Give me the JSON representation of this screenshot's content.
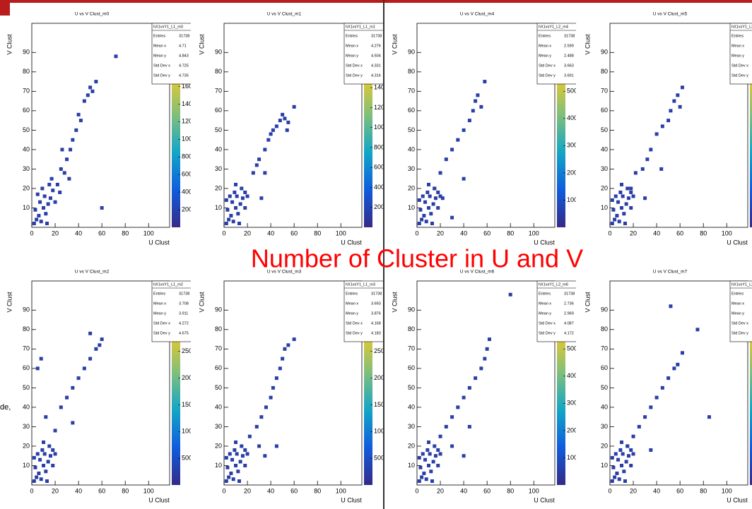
{
  "slide_title": "Number of Cluster in U and V",
  "side_text": "de,",
  "chart_data": [
    {
      "type": "scatter",
      "title": "U vs V Clust_m0",
      "xlabel": "U Clust",
      "ylabel": "V Clust",
      "color": "#2a3fa6",
      "x": [
        2,
        4,
        6,
        8,
        3,
        10,
        12,
        7,
        14,
        11,
        16,
        18,
        9,
        20,
        15,
        22,
        5,
        13,
        24,
        17,
        25,
        28,
        30,
        33,
        35,
        38,
        40,
        45,
        48,
        50,
        52,
        55,
        42,
        26,
        60,
        72,
        32
      ],
      "y": [
        2,
        4,
        6,
        3,
        9,
        10,
        7,
        13,
        12,
        16,
        15,
        19,
        20,
        13,
        22,
        22,
        17,
        2,
        18,
        25,
        30,
        28,
        35,
        40,
        45,
        50,
        58,
        65,
        68,
        72,
        70,
        75,
        55,
        40,
        10,
        88,
        25
      ],
      "xlim": [
        0,
        118
      ],
      "ylim": [
        0,
        105
      ],
      "xticks": [
        0,
        20,
        40,
        60,
        80,
        100
      ],
      "yticks": [
        10,
        20,
        30,
        40,
        50,
        60,
        70,
        80,
        90
      ],
      "colorbar": {
        "lim": [
          0,
          1700
        ],
        "ticks": [
          200,
          400,
          600,
          800,
          1000,
          1200,
          1400,
          1600
        ]
      },
      "stats": {
        "name": "hX1vsY1_L1_m0",
        "labels": [
          "Entries",
          "Mean x",
          "Mean y",
          "Std Dev x",
          "Std Dev y"
        ],
        "values": [
          "31738",
          "4.71",
          "4.843",
          "4.725",
          "4.735"
        ]
      }
    },
    {
      "type": "scatter",
      "title": "U vs V Clust_m1",
      "xlabel": "U Clust",
      "ylabel": "V Clust",
      "color": "#2a3fa6",
      "x": [
        2,
        4,
        6,
        8,
        3,
        10,
        12,
        7,
        14,
        11,
        16,
        18,
        9,
        18,
        15,
        5,
        13,
        2,
        20,
        10,
        25,
        30,
        35,
        38,
        42,
        45,
        48,
        50,
        52,
        55,
        54,
        40,
        28,
        60,
        35,
        32
      ],
      "y": [
        2,
        4,
        6,
        3,
        9,
        10,
        7,
        13,
        12,
        16,
        15,
        18,
        18,
        10,
        20,
        16,
        2,
        14,
        16,
        22,
        28,
        35,
        40,
        45,
        50,
        52,
        55,
        58,
        56,
        54,
        50,
        48,
        32,
        62,
        28,
        15
      ],
      "xlim": [
        0,
        118
      ],
      "ylim": [
        0,
        105
      ],
      "xticks": [
        0,
        20,
        40,
        60,
        80,
        100
      ],
      "yticks": [
        10,
        20,
        30,
        40,
        50,
        60,
        70,
        80,
        90
      ],
      "colorbar": {
        "lim": [
          0,
          1500
        ],
        "ticks": [
          200,
          400,
          600,
          800,
          1000,
          1200,
          1400
        ]
      },
      "stats": {
        "name": "hX1vsY1_L1_m1",
        "labels": [
          "Entries",
          "Mean x",
          "Mean y",
          "Std Dev x",
          "Std Dev y"
        ],
        "values": [
          "31738",
          "4.276",
          "4.504",
          "4.331",
          "4.316"
        ]
      }
    },
    {
      "type": "scatter",
      "title": "U vs V Clust_m4",
      "xlabel": "U Clust",
      "ylabel": "V Clust",
      "color": "#2a3fa6",
      "x": [
        2,
        4,
        6,
        8,
        3,
        10,
        12,
        7,
        14,
        11,
        16,
        18,
        9,
        18,
        15,
        5,
        13,
        2,
        20,
        10,
        15,
        20,
        25,
        30,
        35,
        40,
        45,
        48,
        50,
        52,
        55,
        58,
        40,
        22,
        30
      ],
      "y": [
        2,
        4,
        6,
        3,
        9,
        10,
        7,
        13,
        12,
        16,
        15,
        18,
        18,
        10,
        20,
        16,
        2,
        14,
        16,
        22,
        20,
        28,
        35,
        40,
        45,
        50,
        55,
        60,
        65,
        68,
        62,
        75,
        25,
        15,
        5
      ],
      "xlim": [
        0,
        118
      ],
      "ylim": [
        0,
        105
      ],
      "xticks": [
        0,
        20,
        40,
        60,
        80,
        100
      ],
      "yticks": [
        10,
        20,
        30,
        40,
        50,
        60,
        70,
        80,
        90
      ],
      "colorbar": {
        "lim": [
          0,
          5500
        ],
        "ticks": [
          1000,
          2000,
          3000,
          4000,
          5000
        ]
      },
      "stats": {
        "name": "hX1vsY1_L2_m4",
        "labels": [
          "Entries",
          "Mean x",
          "Mean y",
          "Std Dev x",
          "Std Dev y"
        ],
        "values": [
          "31738",
          "2.599",
          "2.488",
          "3.663",
          "3.691"
        ]
      }
    },
    {
      "type": "scatter",
      "title": "U vs V Clust_m5",
      "xlabel": "U Clust",
      "ylabel": "V Clust",
      "color": "#2a3fa6",
      "x": [
        2,
        4,
        6,
        8,
        3,
        10,
        12,
        7,
        14,
        11,
        16,
        18,
        9,
        18,
        15,
        5,
        13,
        2,
        20,
        10,
        18,
        22,
        28,
        32,
        35,
        40,
        45,
        50,
        52,
        55,
        58,
        62,
        44,
        30,
        60
      ],
      "y": [
        2,
        4,
        6,
        3,
        9,
        10,
        7,
        13,
        12,
        16,
        15,
        18,
        18,
        10,
        20,
        16,
        2,
        14,
        16,
        22,
        20,
        28,
        30,
        35,
        40,
        48,
        52,
        55,
        60,
        65,
        68,
        72,
        30,
        15,
        62
      ],
      "xlim": [
        0,
        118
      ],
      "ylim": [
        0,
        105
      ],
      "xticks": [
        0,
        20,
        40,
        60,
        80,
        100
      ],
      "yticks": [
        10,
        20,
        30,
        40,
        50,
        60,
        70,
        80,
        90
      ],
      "stats": {
        "name": "hX1vsY1_L2_m",
        "labels": [
          "Entries",
          "Mean x",
          "Mean y",
          "Std Dev x",
          "Std Dev y"
        ],
        "values": [
          "3173",
          "3.24",
          "3.2",
          "4.05",
          "3.9"
        ]
      }
    },
    {
      "type": "scatter",
      "title": "U vs V Clust_m2",
      "xlabel": "U Clust",
      "ylabel": "V Clust",
      "color": "#2a3fa6",
      "x": [
        2,
        4,
        6,
        8,
        3,
        10,
        12,
        7,
        14,
        11,
        16,
        18,
        9,
        18,
        15,
        5,
        13,
        2,
        20,
        10,
        5,
        8,
        25,
        30,
        35,
        40,
        45,
        50,
        55,
        58,
        60,
        50,
        20,
        12,
        35
      ],
      "y": [
        2,
        4,
        6,
        3,
        9,
        10,
        7,
        13,
        12,
        16,
        15,
        18,
        18,
        10,
        20,
        16,
        2,
        14,
        16,
        22,
        60,
        65,
        40,
        45,
        50,
        55,
        60,
        65,
        70,
        72,
        75,
        78,
        28,
        35,
        32
      ],
      "xlim": [
        0,
        118
      ],
      "ylim": [
        0,
        105
      ],
      "xticks": [
        0,
        20,
        40,
        60,
        80,
        100
      ],
      "yticks": [
        10,
        20,
        30,
        40,
        50,
        60,
        70,
        80,
        90
      ],
      "colorbar": {
        "lim": [
          0,
          2800
        ],
        "ticks": [
          500,
          1000,
          1500,
          2000,
          2500
        ]
      },
      "stats": {
        "name": "hX1vsY1_L1_m2",
        "labels": [
          "Entries",
          "Mean x",
          "Mean y",
          "Std Dev x",
          "Std Dev y"
        ],
        "values": [
          "31738",
          "3.708",
          "3.911",
          "4.272",
          "4.675"
        ]
      }
    },
    {
      "type": "scatter",
      "title": "U vs V Clust_m3",
      "xlabel": "U Clust",
      "ylabel": "V Clust",
      "color": "#2a3fa6",
      "x": [
        2,
        4,
        6,
        8,
        3,
        10,
        12,
        7,
        14,
        11,
        16,
        18,
        9,
        18,
        15,
        5,
        13,
        2,
        20,
        10,
        22,
        28,
        32,
        36,
        40,
        42,
        45,
        48,
        50,
        52,
        55,
        60,
        30,
        45,
        35
      ],
      "y": [
        2,
        4,
        6,
        3,
        9,
        10,
        7,
        13,
        12,
        16,
        15,
        18,
        18,
        10,
        20,
        16,
        2,
        14,
        16,
        22,
        25,
        30,
        35,
        40,
        45,
        50,
        55,
        60,
        65,
        70,
        72,
        75,
        20,
        20,
        15
      ],
      "xlim": [
        0,
        118
      ],
      "ylim": [
        0,
        105
      ],
      "xticks": [
        0,
        20,
        40,
        60,
        80,
        100
      ],
      "yticks": [
        10,
        20,
        30,
        40,
        50,
        60,
        70,
        80,
        90
      ],
      "colorbar": {
        "lim": [
          0,
          2800
        ],
        "ticks": [
          500,
          1000,
          1500,
          2000,
          2500
        ]
      },
      "stats": {
        "name": "hX1vsY1_L1_m3",
        "labels": [
          "Entries",
          "Mean x",
          "Mean y",
          "Std Dev x",
          "Std Dev y"
        ],
        "values": [
          "31738",
          "3.693",
          "3.876",
          "4.168",
          "4.183"
        ]
      }
    },
    {
      "type": "scatter",
      "title": "U vs V Clust_m6",
      "xlabel": "U Clust",
      "ylabel": "V Clust",
      "color": "#2a3fa6",
      "x": [
        2,
        4,
        6,
        8,
        3,
        10,
        12,
        7,
        14,
        11,
        16,
        18,
        9,
        18,
        15,
        5,
        13,
        2,
        20,
        10,
        20,
        25,
        30,
        35,
        40,
        45,
        50,
        55,
        58,
        60,
        62,
        80,
        45,
        30,
        40
      ],
      "y": [
        2,
        4,
        6,
        3,
        9,
        10,
        7,
        13,
        12,
        16,
        15,
        18,
        18,
        10,
        20,
        16,
        2,
        14,
        16,
        22,
        25,
        30,
        35,
        40,
        45,
        50,
        55,
        60,
        65,
        70,
        75,
        98,
        30,
        20,
        15
      ],
      "xlim": [
        0,
        118
      ],
      "ylim": [
        0,
        105
      ],
      "xticks": [
        0,
        20,
        40,
        60,
        80,
        100
      ],
      "yticks": [
        10,
        20,
        30,
        40,
        50,
        60,
        70,
        80,
        90
      ],
      "colorbar": {
        "lim": [
          0,
          5500
        ],
        "ticks": [
          1000,
          2000,
          3000,
          4000,
          5000
        ]
      },
      "stats": {
        "name": "hX1vsY1_L2_m6",
        "labels": [
          "Entries",
          "Mean x",
          "Mean y",
          "Std Dev x",
          "Std Dev y"
        ],
        "values": [
          "31738",
          "2.736",
          "2.969",
          "4.087",
          "4.172"
        ]
      }
    },
    {
      "type": "scatter",
      "title": "U vs V Clust_m7",
      "xlabel": "U Clust",
      "ylabel": "V Clust",
      "color": "#2a3fa6",
      "x": [
        2,
        4,
        6,
        8,
        3,
        10,
        12,
        7,
        14,
        11,
        16,
        18,
        9,
        18,
        15,
        5,
        13,
        2,
        20,
        10,
        15,
        20,
        25,
        30,
        35,
        40,
        45,
        50,
        55,
        58,
        62,
        52,
        75,
        85,
        35
      ],
      "y": [
        2,
        4,
        6,
        3,
        9,
        10,
        7,
        13,
        12,
        16,
        15,
        18,
        18,
        10,
        20,
        16,
        2,
        14,
        16,
        22,
        20,
        25,
        30,
        35,
        40,
        45,
        50,
        55,
        60,
        62,
        68,
        92,
        80,
        35,
        18
      ],
      "xlim": [
        0,
        118
      ],
      "ylim": [
        0,
        105
      ],
      "xticks": [
        0,
        20,
        40,
        60,
        80,
        100
      ],
      "yticks": [
        10,
        20,
        30,
        40,
        50,
        60,
        70,
        80,
        90
      ],
      "stats": {
        "name": "hX1vsY1_L2_m",
        "labels": [
          "Entries",
          "Mean x",
          "Mean y",
          "Std Dev x",
          "Std Dev y"
        ],
        "values": [
          "3173",
          "2.25",
          "2.1",
          "3.78",
          "3.66"
        ]
      }
    }
  ]
}
